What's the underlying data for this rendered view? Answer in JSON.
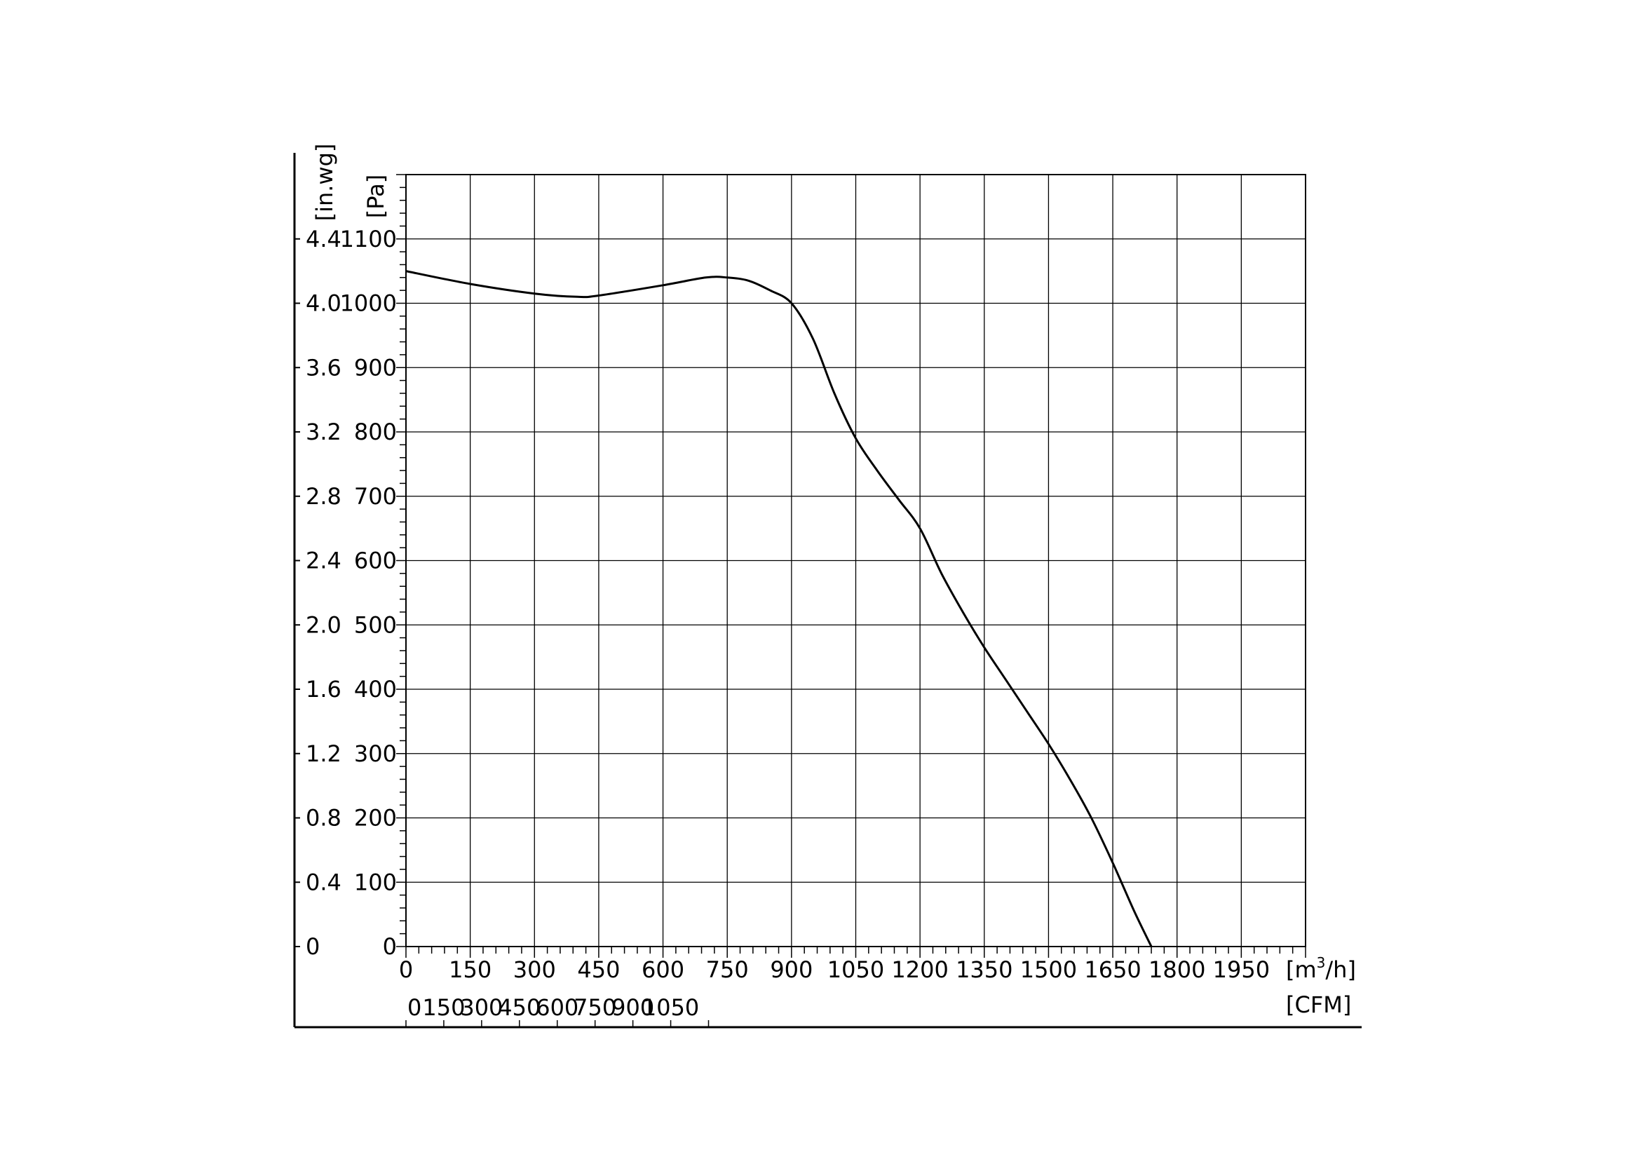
{
  "chart_data": {
    "type": "line",
    "title": "",
    "y_units": {
      "inwg": "[in.wg]",
      "pa": "[Pa]"
    },
    "x_units": {
      "m3h_prefix": "[m",
      "m3h_sup": "3",
      "m3h_suffix": "/h]",
      "cfm": "[CFM]"
    },
    "pa_axis": {
      "ylim": [
        0,
        1200
      ],
      "ticks": [
        0,
        100,
        200,
        300,
        400,
        500,
        600,
        700,
        800,
        900,
        1000,
        1100
      ]
    },
    "inwg_axis": {
      "ticks": [
        "0",
        "0.4",
        "0.8",
        "1.2",
        "1.6",
        "2.0",
        "2.4",
        "2.8",
        "3.2",
        "3.6",
        "4.0",
        "4.4"
      ]
    },
    "m3h_axis": {
      "xlim": [
        0,
        2100
      ],
      "ticks": [
        0,
        150,
        300,
        450,
        600,
        750,
        900,
        1050,
        1200,
        1350,
        1500,
        1650,
        1800,
        1950
      ]
    },
    "cfm_axis": {
      "ticks": [
        0,
        150,
        300,
        450,
        600,
        750,
        900,
        1050
      ]
    },
    "grid": true,
    "series": [
      {
        "x": [
          0,
          150,
          300,
          400,
          450,
          600,
          700,
          750,
          800,
          850,
          900,
          950,
          1000,
          1050,
          1100,
          1150,
          1200,
          1250,
          1300,
          1350,
          1400,
          1450,
          1500,
          1550,
          1600,
          1650,
          1700,
          1740
        ],
        "y": [
          1050,
          1030,
          1015,
          1010,
          1012,
          1028,
          1040,
          1040,
          1035,
          1020,
          1000,
          945,
          860,
          790,
          740,
          695,
          650,
          580,
          520,
          465,
          415,
          365,
          315,
          260,
          200,
          130,
          55,
          0
        ]
      }
    ]
  }
}
